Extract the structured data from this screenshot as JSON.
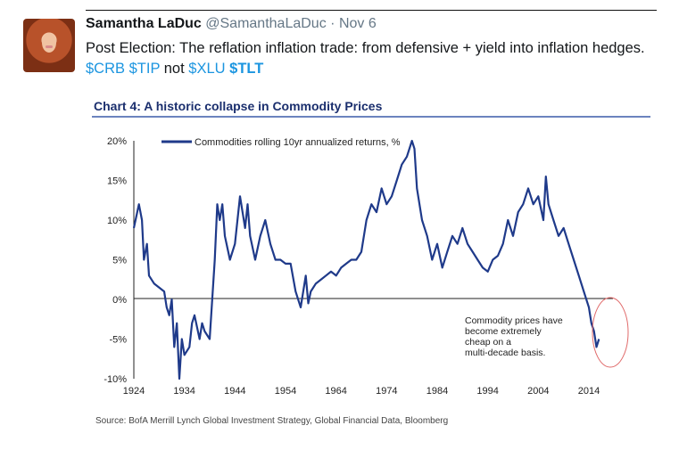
{
  "tweet": {
    "name": "Samantha LaDuc",
    "handle": "@SamanthaLaDuc",
    "separator": "·",
    "time": "Nov 6",
    "text_part1": "Post Election: The reflation inflation trade: from defensive + yield into inflation hedges. ",
    "cashtags": [
      "$CRB",
      "$TIP",
      "$XLU",
      "$TLT"
    ],
    "text_not": " not "
  },
  "colors": {
    "line": "#1f3a8a",
    "title": "#1b2f6e",
    "rule": "#3a5aa8",
    "circle": "#e06a6a",
    "cashtag": "#1b95e0"
  },
  "chart_data": {
    "type": "line",
    "title": "Chart 4: A historic collapse in Commodity Prices",
    "legend": "Commodities rolling 10yr annualized returns, %",
    "legend_position": "top-left",
    "annotation": "Commodity prices have become extremely cheap on a multi-decade basis.",
    "source": "Source: BofA Merrill Lynch Global Investment Strategy, Global Financial Data, Bloomberg",
    "x_ticks": [
      "1924",
      "1934",
      "1944",
      "1954",
      "1964",
      "1974",
      "1984",
      "1994",
      "2004",
      "2014"
    ],
    "y_ticks": [
      "20%",
      "15%",
      "10%",
      "5%",
      "0%",
      "-5%",
      "-10%"
    ],
    "xlim": [
      1924,
      2017
    ],
    "ylim": [
      -10,
      20
    ],
    "grid": false,
    "series": [
      {
        "name": "Commodities rolling 10yr annualized returns, %",
        "x": [
          1924,
          1925,
          1925.6,
          1926,
          1926.6,
          1927,
          1928,
          1929,
          1930,
          1930.5,
          1931,
          1931.5,
          1932,
          1932.5,
          1933,
          1933.5,
          1934,
          1935,
          1935.5,
          1936,
          1937,
          1937.5,
          1938,
          1939,
          1940,
          1940.5,
          1941,
          1941.5,
          1942,
          1943,
          1944,
          1945,
          1946,
          1946.5,
          1947,
          1948,
          1949,
          1950,
          1951,
          1952,
          1953,
          1954,
          1955,
          1956,
          1957,
          1958,
          1958.5,
          1959,
          1960,
          1961,
          1962,
          1963,
          1964,
          1965,
          1966,
          1967,
          1968,
          1969,
          1970,
          1971,
          1972,
          1973,
          1974,
          1975,
          1976,
          1977,
          1978,
          1979,
          1979.5,
          1980,
          1981,
          1982,
          1983,
          1984,
          1985,
          1986,
          1987,
          1988,
          1989,
          1990,
          1991,
          1992,
          1993,
          1994,
          1995,
          1996,
          1997,
          1998,
          1999,
          2000,
          2001,
          2002,
          2003,
          2004,
          2005,
          2005.5,
          2006,
          2007,
          2008,
          2009,
          2010,
          2011,
          2012,
          2013,
          2014,
          2014.5,
          2015,
          2015.5,
          2016
        ],
        "values": [
          9,
          12,
          10,
          5,
          7,
          3,
          2,
          1.5,
          1,
          -1,
          -2,
          0,
          -6,
          -3,
          -10,
          -5,
          -7,
          -6,
          -3,
          -2,
          -5,
          -3,
          -4,
          -5,
          5,
          12,
          10,
          12,
          8,
          5,
          7,
          13,
          9,
          12,
          8,
          5,
          8,
          10,
          7,
          5,
          5,
          4.5,
          4.5,
          1,
          -1,
          3,
          -0.5,
          1,
          2,
          2.5,
          3,
          3.5,
          3,
          4,
          4.5,
          5,
          5,
          6,
          10,
          12,
          11,
          14,
          12,
          13,
          15,
          17,
          18,
          20,
          19,
          14,
          10,
          8,
          5,
          7,
          4,
          6,
          8,
          7,
          9,
          7,
          6,
          5,
          4,
          3.5,
          5,
          5.5,
          7,
          10,
          8,
          11,
          12,
          14,
          12,
          13,
          10,
          15.5,
          12,
          10,
          8,
          9,
          7,
          5,
          3,
          1,
          -1,
          -3,
          -4,
          -6,
          -5
        ]
      }
    ]
  }
}
